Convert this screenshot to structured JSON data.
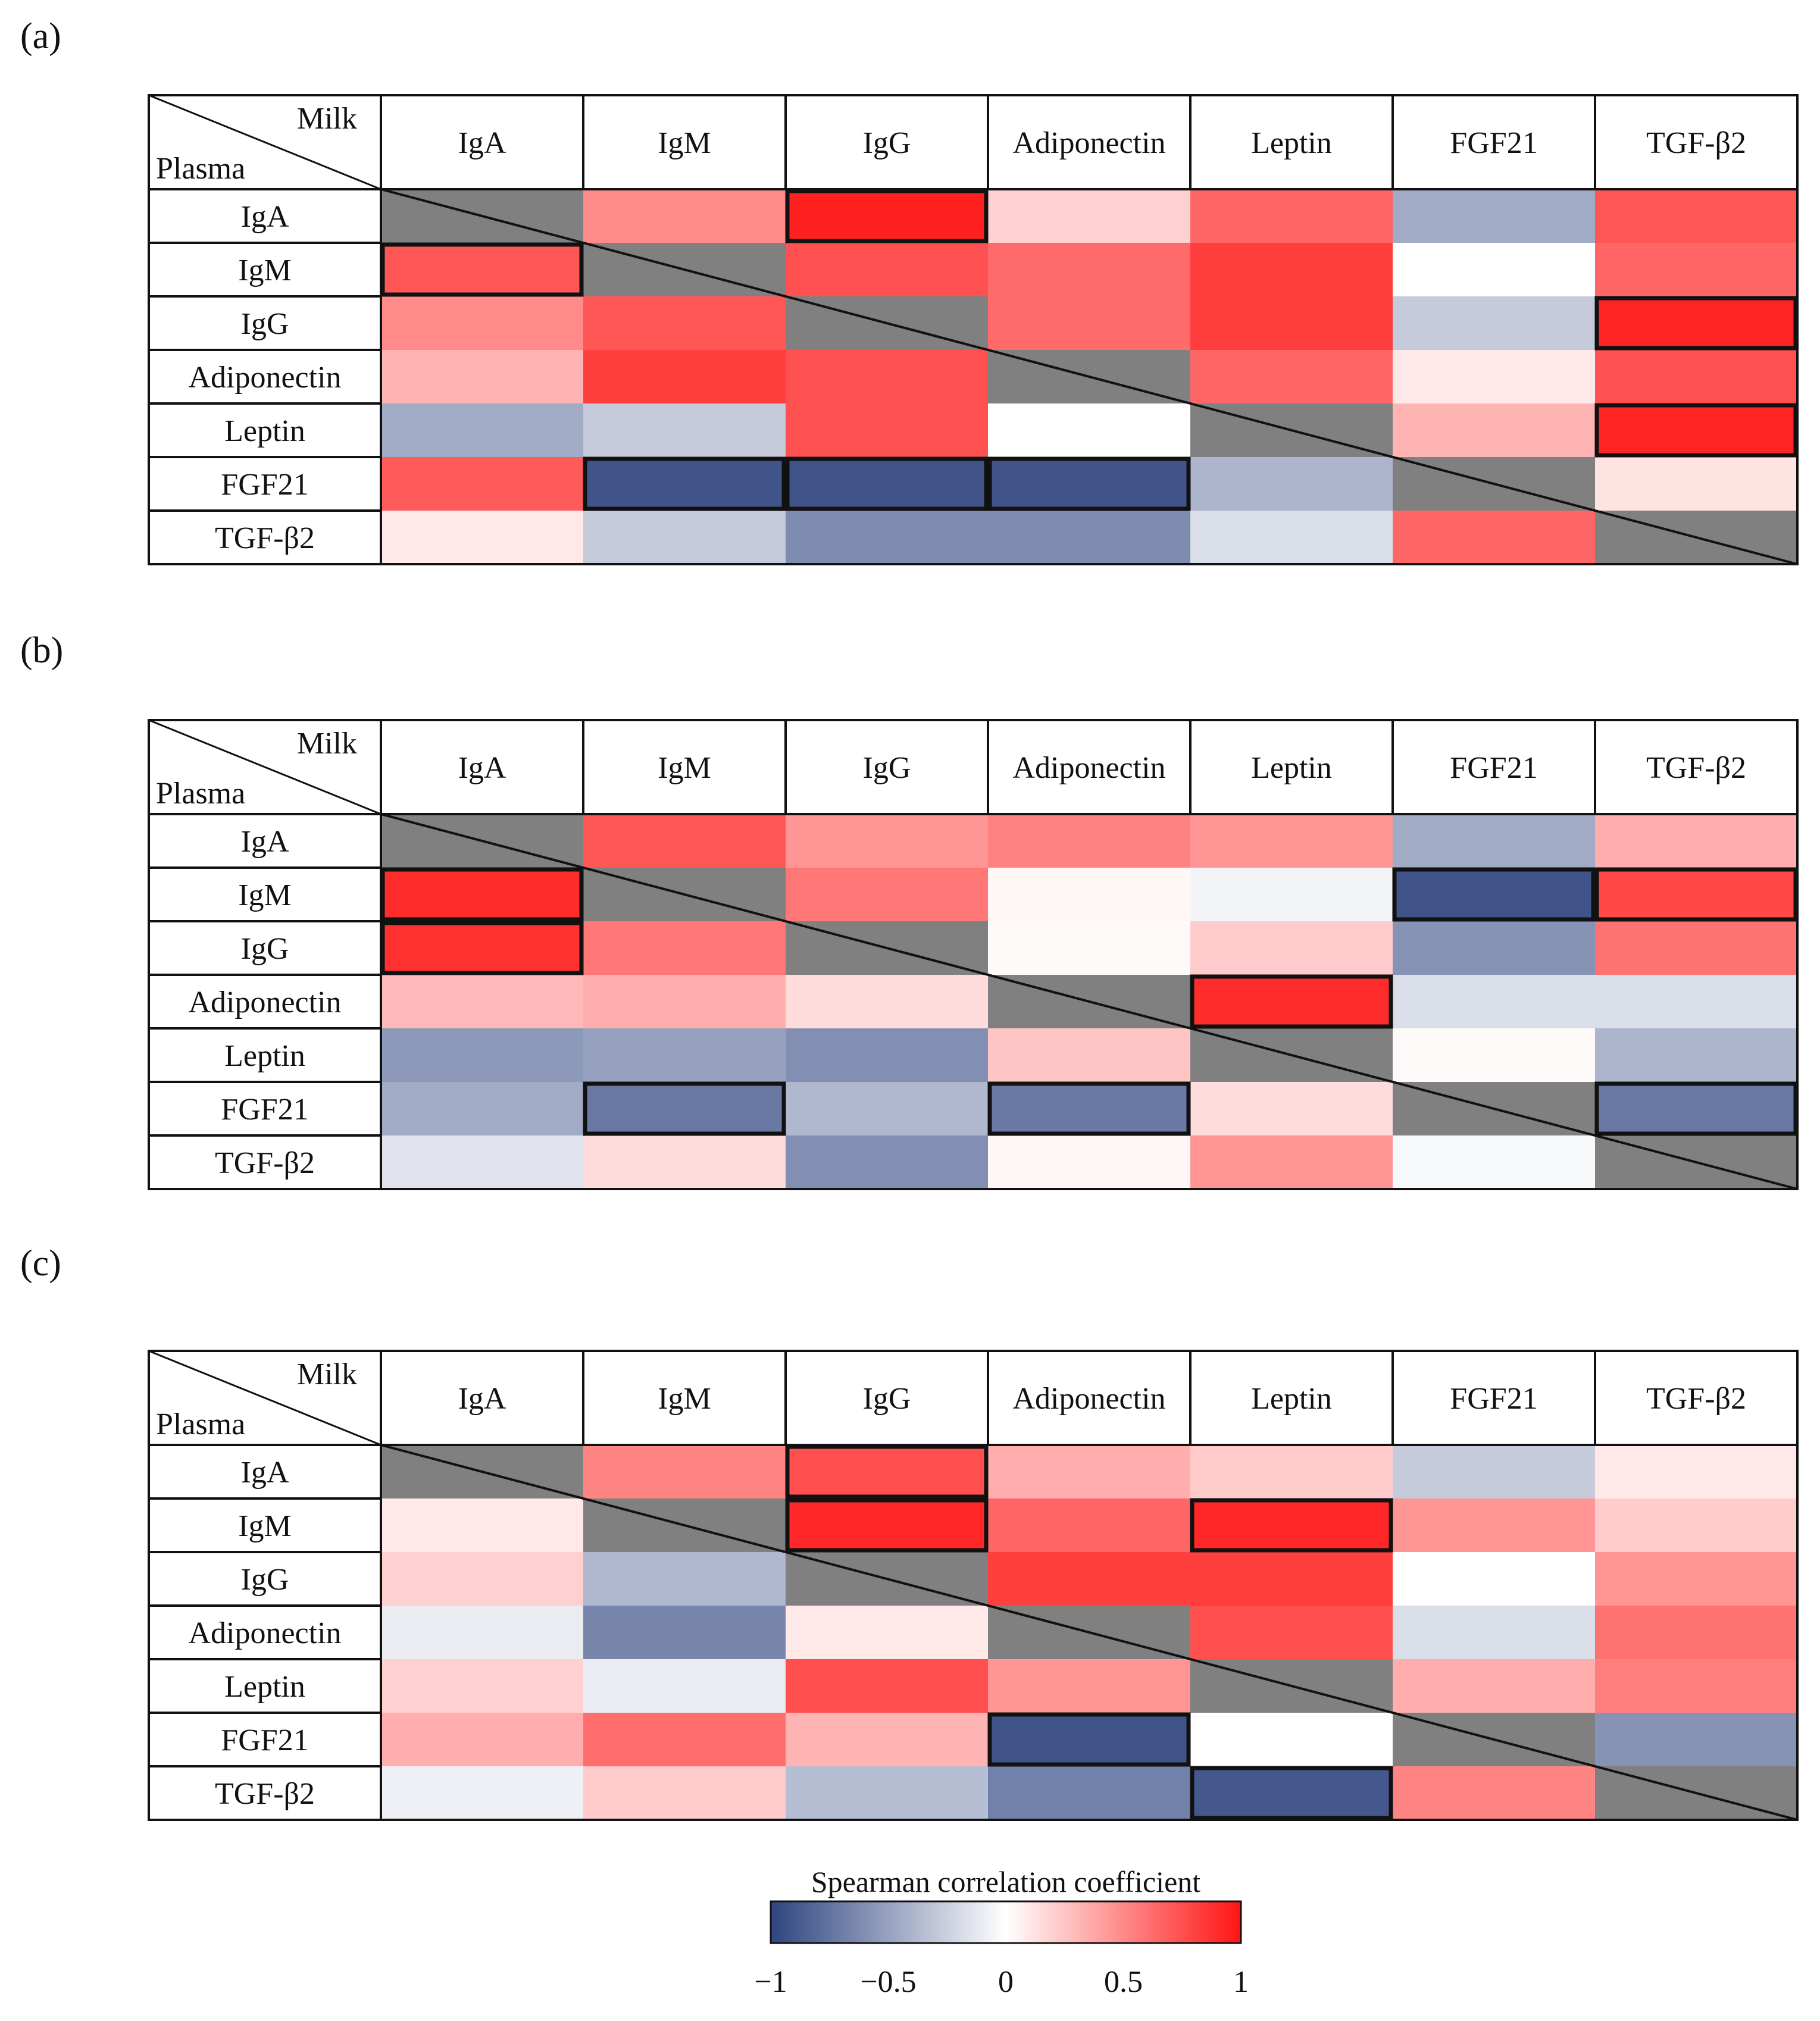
{
  "chart_data": {
    "type": "heatmap",
    "row_axis_label": "Plasma",
    "col_axis_label": "Milk",
    "columns": [
      "IgA",
      "IgM",
      "IgG",
      "Adiponectin",
      "Leptin",
      "FGF21",
      "TGF-β2"
    ],
    "rows": [
      "IgA",
      "IgM",
      "IgG",
      "Adiponectin",
      "Leptin",
      "FGF21",
      "TGF-β2"
    ],
    "diagonal_color": "#808080",
    "scale_title": "Spearman correlation coefficient",
    "scale_range": [
      -1,
      1
    ],
    "scale_ticks": [
      "−1",
      "−0.5",
      "0",
      "0.5",
      "1"
    ],
    "scale_colors": {
      "negative": "#2f4580",
      "zero": "#ffffff",
      "positive": "#ff1414"
    },
    "panels": [
      {
        "label": "(a)",
        "values": [
          [
            null,
            0.5,
            0.95,
            0.2,
            0.65,
            -0.45,
            0.72
          ],
          [
            0.72,
            null,
            0.74,
            0.63,
            0.82,
            0.0,
            0.65
          ],
          [
            0.5,
            0.72,
            null,
            0.63,
            0.82,
            -0.28,
            0.93
          ],
          [
            0.32,
            0.82,
            0.74,
            null,
            0.65,
            0.1,
            0.74
          ],
          [
            -0.45,
            -0.28,
            0.74,
            0.0,
            null,
            0.32,
            0.93
          ],
          [
            0.7,
            -0.92,
            -0.92,
            -0.92,
            -0.4,
            null,
            0.12
          ],
          [
            0.1,
            -0.28,
            -0.62,
            -0.62,
            -0.18,
            0.65,
            null
          ]
        ],
        "significant": [
          [
            0,
            2
          ],
          [
            1,
            0
          ],
          [
            2,
            6
          ],
          [
            4,
            6
          ],
          [
            5,
            1
          ],
          [
            5,
            2
          ],
          [
            5,
            3
          ]
        ]
      },
      {
        "label": "(b)",
        "values": [
          [
            null,
            0.72,
            0.45,
            0.53,
            0.45,
            -0.45,
            0.35
          ],
          [
            0.9,
            null,
            0.58,
            0.04,
            -0.06,
            -0.92,
            0.78
          ],
          [
            0.88,
            0.58,
            null,
            0.02,
            0.22,
            -0.58,
            0.6
          ],
          [
            0.3,
            0.35,
            0.15,
            null,
            0.9,
            -0.18,
            -0.18
          ],
          [
            -0.55,
            -0.5,
            -0.6,
            0.25,
            null,
            0.02,
            -0.4
          ],
          [
            -0.45,
            -0.72,
            -0.38,
            -0.72,
            0.15,
            null,
            -0.72
          ],
          [
            -0.15,
            0.15,
            -0.6,
            0.04,
            0.45,
            -0.04,
            null
          ]
        ],
        "significant": [
          [
            1,
            0
          ],
          [
            1,
            5
          ],
          [
            1,
            6
          ],
          [
            2,
            0
          ],
          [
            3,
            4
          ],
          [
            5,
            1
          ],
          [
            5,
            3
          ],
          [
            5,
            6
          ]
        ]
      },
      {
        "label": "(c)",
        "values": [
          [
            null,
            0.52,
            0.75,
            0.35,
            0.22,
            -0.28,
            0.1
          ],
          [
            0.1,
            null,
            0.92,
            0.65,
            0.92,
            0.45,
            0.22
          ],
          [
            0.2,
            -0.38,
            null,
            0.82,
            0.82,
            0.0,
            0.45
          ],
          [
            -0.1,
            -0.65,
            0.1,
            null,
            0.75,
            -0.18,
            0.6
          ],
          [
            0.2,
            -0.1,
            0.75,
            0.45,
            null,
            0.35,
            0.55
          ],
          [
            0.35,
            0.62,
            0.32,
            -0.92,
            0.0,
            null,
            -0.58
          ],
          [
            -0.08,
            0.22,
            -0.35,
            -0.68,
            -0.9,
            0.52,
            null
          ]
        ],
        "significant": [
          [
            0,
            2
          ],
          [
            1,
            2
          ],
          [
            1,
            4
          ],
          [
            5,
            3
          ],
          [
            6,
            4
          ]
        ]
      }
    ]
  }
}
